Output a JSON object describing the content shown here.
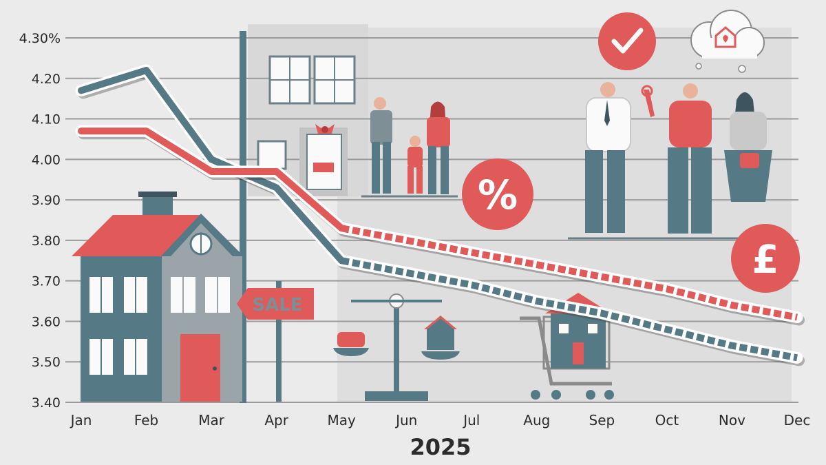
{
  "chart_data": {
    "type": "line",
    "x_label": "2025",
    "categories": [
      "Jan",
      "Feb",
      "Mar",
      "Apr",
      "May",
      "Jun",
      "Jul",
      "Aug",
      "Sep",
      "Oct",
      "Nov",
      "Dec"
    ],
    "yticks": [
      "4.30%",
      "4.20",
      "4.10",
      "4.00",
      "3.90",
      "3.80",
      "3.70",
      "3.60",
      "3.50",
      "3.40"
    ],
    "ylim": [
      3.4,
      4.3
    ],
    "grid": "horizontal",
    "forecast_start_index": 4,
    "series": [
      {
        "color": "#557985",
        "values": [
          4.17,
          4.22,
          4.0,
          3.93,
          3.75,
          3.72,
          3.69,
          3.65,
          3.62,
          3.58,
          3.54,
          3.51
        ]
      },
      {
        "color": "#e05a5a",
        "values": [
          4.07,
          4.07,
          3.97,
          3.97,
          3.83,
          3.8,
          3.77,
          3.74,
          3.71,
          3.68,
          3.64,
          3.61
        ]
      }
    ]
  },
  "illustration": {
    "sale_sign_text": "SALE",
    "percent_symbol": "%",
    "pound_symbol": "£",
    "checkmark_icon": "checkmark-icon",
    "house_icon": "house-icon",
    "heart_icon": "heart-icon",
    "colors": {
      "red": "#e05a5a",
      "slate": "#557985",
      "background": "#ebebeb",
      "panel": "#dcdcdc"
    }
  }
}
